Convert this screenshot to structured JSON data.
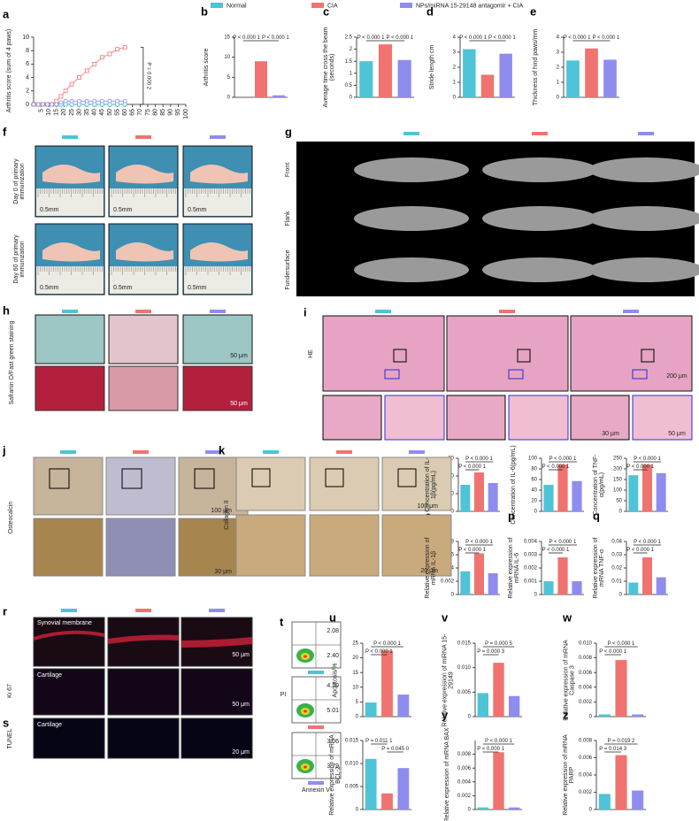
{
  "chart_data": [
    {
      "type": "line",
      "label": "a",
      "y_label": "Arthritis score (sum of 4 paws)",
      "x": [
        0,
        3,
        6,
        9,
        12,
        15,
        18,
        21,
        25,
        30,
        35,
        40,
        45,
        50,
        55,
        60
      ],
      "series": [
        {
          "name": "Normal",
          "color": "#4fc3d7",
          "values": [
            0,
            0,
            0,
            0,
            0,
            0,
            0,
            0,
            0,
            0,
            0,
            0,
            0,
            0,
            0,
            0
          ]
        },
        {
          "name": "CIA",
          "color": "#f0736f",
          "values": [
            0,
            0,
            0,
            0,
            0,
            0.5,
            1.2,
            2,
            3,
            4,
            5,
            6,
            7,
            7.5,
            8.2,
            8.5
          ]
        },
        {
          "name": "NPs/miRNA 15-29148 antagomir + CIA",
          "color": "#8f8cf0",
          "values": [
            0,
            0,
            0,
            0,
            0,
            0,
            0.3,
            0.5,
            0.5,
            0.5,
            0.5,
            0.5,
            0.5,
            0.5,
            0.5,
            0.5
          ]
        }
      ],
      "xlim": [
        0,
        100
      ],
      "xticks": [
        5,
        10,
        15,
        20,
        25,
        30,
        35,
        40,
        45,
        50,
        55,
        60,
        65,
        70,
        75,
        80,
        85,
        90,
        95,
        100
      ],
      "ylim": [
        0,
        10
      ],
      "yticks": [
        0,
        2,
        4,
        6,
        8,
        10
      ],
      "annotations": [
        "P = 0.000 2"
      ]
    },
    {
      "type": "bar",
      "label": "b",
      "y_label": "Arthritis score",
      "values": [
        0,
        9,
        0.5
      ],
      "ylim": [
        0,
        15
      ],
      "yticks": [
        0,
        5,
        10,
        15
      ],
      "annotations": [
        "P < 0.000 1",
        "P < 0.000 1"
      ]
    },
    {
      "type": "bar",
      "label": "c",
      "y_label": "Average time cross the beam (seconds)",
      "values": [
        1.5,
        2.2,
        1.55
      ],
      "ylim": [
        0,
        2.5
      ],
      "yticks": [
        0,
        0.5,
        1,
        {
          "value": 1.5,
          "label": "1.5"
        },
        2,
        2.5
      ],
      "annotations": [
        "P < 0.000 1",
        "P < 0.000 1"
      ]
    },
    {
      "type": "bar",
      "label": "d",
      "y_label": "Stride length cm",
      "values": [
        3.2,
        1.5,
        2.9
      ],
      "ylim": [
        0,
        4
      ],
      "yticks": [
        0,
        1,
        2,
        3,
        4
      ],
      "annotations": [
        "P < 0.000 1",
        "P < 0.000 1"
      ]
    },
    {
      "type": "bar",
      "label": "e",
      "y_label": "Thickness of hind paws/mm",
      "values": [
        2.45,
        3.25,
        2.5
      ],
      "ylim": [
        0,
        4
      ],
      "yticks": [
        0,
        1,
        2,
        3,
        4
      ],
      "annotations": [
        "P < 0.000 1",
        "P < 0.000 1"
      ]
    },
    {
      "type": "bar",
      "label": "l",
      "y_label": "Concentration of IL-1β(pg/mL)",
      "values": [
        15,
        22,
        16
      ],
      "ylim": [
        0,
        30
      ],
      "yticks": [
        0,
        10,
        20,
        30
      ],
      "annotations": [
        "P < 0.000 1",
        "P < 0.000 1"
      ]
    },
    {
      "type": "bar",
      "label": "m",
      "y_label": "Concentration of IL-6(pg/mL)",
      "values": [
        50,
        88,
        57
      ],
      "ylim": [
        0,
        100
      ],
      "yticks": [
        0,
        20,
        40,
        60,
        80,
        100
      ],
      "annotations": [
        "P < 0.000 1",
        "P < 0.000 1"
      ]
    },
    {
      "type": "bar",
      "label": "n",
      "y_label": "Concentration of TNF-α(pg/mL)",
      "values": [
        170,
        220,
        180
      ],
      "ylim": [
        0,
        250
      ],
      "yticks": [
        0,
        50,
        100,
        150,
        200,
        250
      ],
      "annotations": [
        "P < 0.000 1",
        "P < 0.000 1"
      ]
    },
    {
      "type": "bar",
      "label": "o",
      "y_label": "Relative expression of mRNA IL-1β",
      "values": [
        0.0035,
        0.0062,
        0.0032
      ],
      "ylim": [
        0,
        0.008
      ],
      "yticks": [
        0,
        0.002,
        0.004,
        0.006,
        0.008
      ],
      "annotations": [
        "P < 0.000 1",
        "P < 0.000 1"
      ]
    },
    {
      "type": "bar",
      "label": "p",
      "y_label": "Relative expression of mRNA IL-6",
      "values": [
        0.001,
        0.0028,
        0.001
      ],
      "ylim": [
        0,
        0.004
      ],
      "yticks": [
        0,
        0.001,
        0.002,
        0.003,
        0.004
      ],
      "annotations": [
        "P < 0.000 1",
        "P < 0.000 1"
      ]
    },
    {
      "type": "bar",
      "label": "q",
      "y_label": "Relative expression of mRNA TNF-α",
      "values": [
        0.009,
        0.028,
        0.013
      ],
      "ylim": [
        0,
        0.04
      ],
      "yticks": [
        0,
        0.01,
        0.02,
        0.03,
        0.04
      ],
      "annotations": [
        "P < 0.000 1",
        "P < 0.000 1"
      ]
    },
    {
      "type": "bar",
      "label": "u",
      "y_label": "Apoptosis/%",
      "values": [
        4.8,
        22.5,
        7.5
      ],
      "ylim": [
        0,
        25
      ],
      "yticks": [
        0,
        5,
        10,
        15,
        20,
        25
      ],
      "annotations": [
        "P < 0.000 1",
        "P < 0.000 1"
      ]
    },
    {
      "type": "bar",
      "label": "v",
      "y_label": "Relative expression of miRNA 15-29149",
      "values": [
        0.0048,
        0.011,
        0.0042
      ],
      "ylim": [
        0,
        0.015
      ],
      "yticks": [
        0,
        0.005,
        {
          "value": 0.01,
          "label": "0.010"
        },
        0.015
      ],
      "annotations": [
        "P = 0.000 5",
        "P = 0.000 3"
      ]
    },
    {
      "type": "bar",
      "label": "w",
      "y_label": "Relative expression of mRNA Caspase 3",
      "values": [
        0.0003,
        0.0077,
        0.0003
      ],
      "ylim": [
        0,
        0.01
      ],
      "yticks": [
        0,
        0.002,
        0.004,
        0.006,
        0.008,
        {
          "value": 0.01,
          "label": "0.010"
        }
      ],
      "annotations": [
        "P < 0.000 1",
        "P < 0.000 1"
      ]
    },
    {
      "type": "bar",
      "label": "x",
      "y_label": "Relative expression of mRNA BCL-2",
      "values": [
        0.011,
        0.0035,
        0.009
      ],
      "ylim": [
        0,
        0.015
      ],
      "yticks": [
        0,
        0.005,
        {
          "value": 0.01,
          "label": "0.010"
        },
        0.015
      ],
      "annotations": [
        "P = 0.011 1",
        "P = 0.045 0"
      ]
    },
    {
      "type": "bar",
      "label": "y",
      "y_label": "Relative expression of mRNA BAX",
      "values": [
        0.0003,
        0.0083,
        0.0003
      ],
      "ylim": [
        0,
        0.01
      ],
      "yticks": [
        0,
        0.002,
        0.004,
        0.006,
        0.008
      ],
      "annotations": [
        "P < 0.000 1",
        "P < 0.000 1"
      ]
    },
    {
      "type": "bar",
      "label": "z",
      "y_label": "Relative expression of mRNA PARP",
      "values": [
        0.0018,
        0.0063,
        0.0022
      ],
      "ylim": [
        0,
        0.008
      ],
      "yticks": [
        0,
        0.002,
        0.004,
        0.006,
        0.008
      ],
      "annotations": [
        "P = 0.019 2",
        "P = 0.014 3"
      ]
    }
  ],
  "panels": {
    "f": {
      "label": "f",
      "rows": [
        "Day 0 of primary immunization",
        "Day 60 of primary immunization"
      ],
      "scale": [
        "0.5mm",
        "0.5mm",
        "0.5mm",
        "0.5mm",
        "0.5mm",
        "0.5mm"
      ]
    },
    "g": {
      "label": "g",
      "rows": [
        "Front",
        "Flank",
        "Fundersurface"
      ]
    },
    "h": {
      "label": "h",
      "side": "Safranin O/Fast green staining",
      "scale": [
        "50 μm",
        "50 μm"
      ]
    },
    "i": {
      "label": "i",
      "side": "HE",
      "scale": [
        "200 μm",
        "30 μm",
        "50 μm"
      ]
    },
    "j": {
      "label": "j",
      "side": "Osteocalcin",
      "scale": [
        "100 μm",
        "30 μm"
      ]
    },
    "k": {
      "label": "k",
      "side": "Collagen II",
      "scale": [
        "100 μm",
        "20 μm"
      ]
    },
    "r": {
      "label": "r",
      "side": "Ki 67",
      "regions": [
        "Synovial membrane",
        "Cartilage"
      ],
      "scale": [
        "50 μm",
        "50 μm"
      ]
    },
    "s": {
      "label": "s",
      "side": "TUNEL",
      "regions": [
        "Cartilage"
      ],
      "scale": [
        "20 μm"
      ]
    },
    "t": {
      "label": "t",
      "y_label": "PI",
      "x_label": "Annexin V",
      "quadrants": [
        [
          "2.08",
          "2.40"
        ],
        [
          "4.20",
          "5.01"
        ],
        [
          "3.06",
          "3.79"
        ]
      ]
    }
  }
}
